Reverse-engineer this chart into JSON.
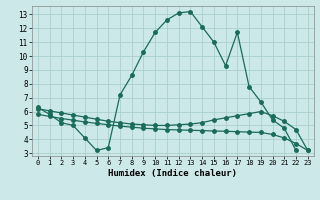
{
  "bg_color": "#cce8e8",
  "grid_color": "#aacfcf",
  "line_color": "#1a6b5a",
  "xlabel": "Humidex (Indice chaleur)",
  "xlim": [
    -0.5,
    23.5
  ],
  "ylim": [
    2.8,
    13.6
  ],
  "yticks": [
    3,
    4,
    5,
    6,
    7,
    8,
    9,
    10,
    11,
    12,
    13
  ],
  "xticks": [
    0,
    1,
    2,
    3,
    4,
    5,
    6,
    7,
    8,
    9,
    10,
    11,
    12,
    13,
    14,
    15,
    16,
    17,
    18,
    19,
    20,
    21,
    22,
    23
  ],
  "curve1_x": [
    0,
    1,
    2,
    3,
    4,
    5,
    6,
    7,
    8,
    9,
    10,
    11,
    12,
    13,
    14,
    15,
    16,
    17,
    18,
    19,
    20,
    21,
    22
  ],
  "curve1_y": [
    6.3,
    5.8,
    5.2,
    5.0,
    4.1,
    3.2,
    3.4,
    7.2,
    8.6,
    10.3,
    11.7,
    12.6,
    13.1,
    13.2,
    12.1,
    11.0,
    9.3,
    11.7,
    7.8,
    6.7,
    5.4,
    4.8,
    3.2
  ],
  "curve2_x": [
    0,
    1,
    2,
    3,
    4,
    5,
    6,
    7,
    8,
    9,
    10,
    11,
    12,
    13,
    14,
    15,
    16,
    17,
    18,
    19,
    20,
    21,
    22,
    23
  ],
  "curve2_y": [
    6.2,
    6.05,
    5.9,
    5.75,
    5.6,
    5.45,
    5.3,
    5.2,
    5.1,
    5.05,
    5.0,
    5.0,
    5.05,
    5.1,
    5.2,
    5.4,
    5.55,
    5.7,
    5.85,
    6.0,
    5.7,
    5.3,
    4.7,
    3.2
  ],
  "curve3_x": [
    0,
    1,
    2,
    3,
    4,
    5,
    6,
    7,
    8,
    9,
    10,
    11,
    12,
    13,
    14,
    15,
    16,
    17,
    18,
    19,
    20,
    21,
    22,
    23
  ],
  "curve3_y": [
    5.8,
    5.65,
    5.5,
    5.38,
    5.25,
    5.15,
    5.05,
    4.95,
    4.88,
    4.8,
    4.75,
    4.7,
    4.68,
    4.65,
    4.63,
    4.6,
    4.58,
    4.55,
    4.52,
    4.5,
    4.35,
    4.1,
    3.7,
    3.2
  ]
}
